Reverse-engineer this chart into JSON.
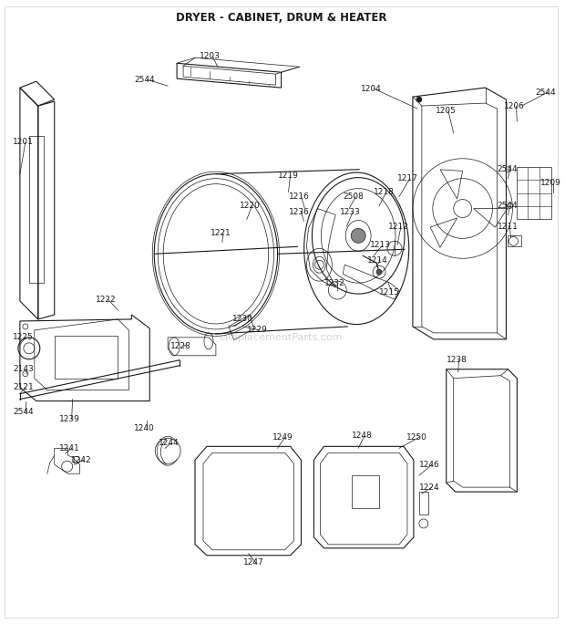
{
  "title": "DRYER - CABINET, DRUM & HEATER",
  "title_fontsize": 8.5,
  "title_fontweight": "bold",
  "bg_color": "#ffffff",
  "line_color": "#1a1a1a",
  "label_fontsize": 6.5,
  "watermark": "eReplacementParts.com",
  "watermark_color": "#aaaaaa",
  "watermark_fontsize": 8,
  "border_color": "#999999",
  "figsize": [
    6.2,
    6.84
  ],
  "dpi": 100
}
